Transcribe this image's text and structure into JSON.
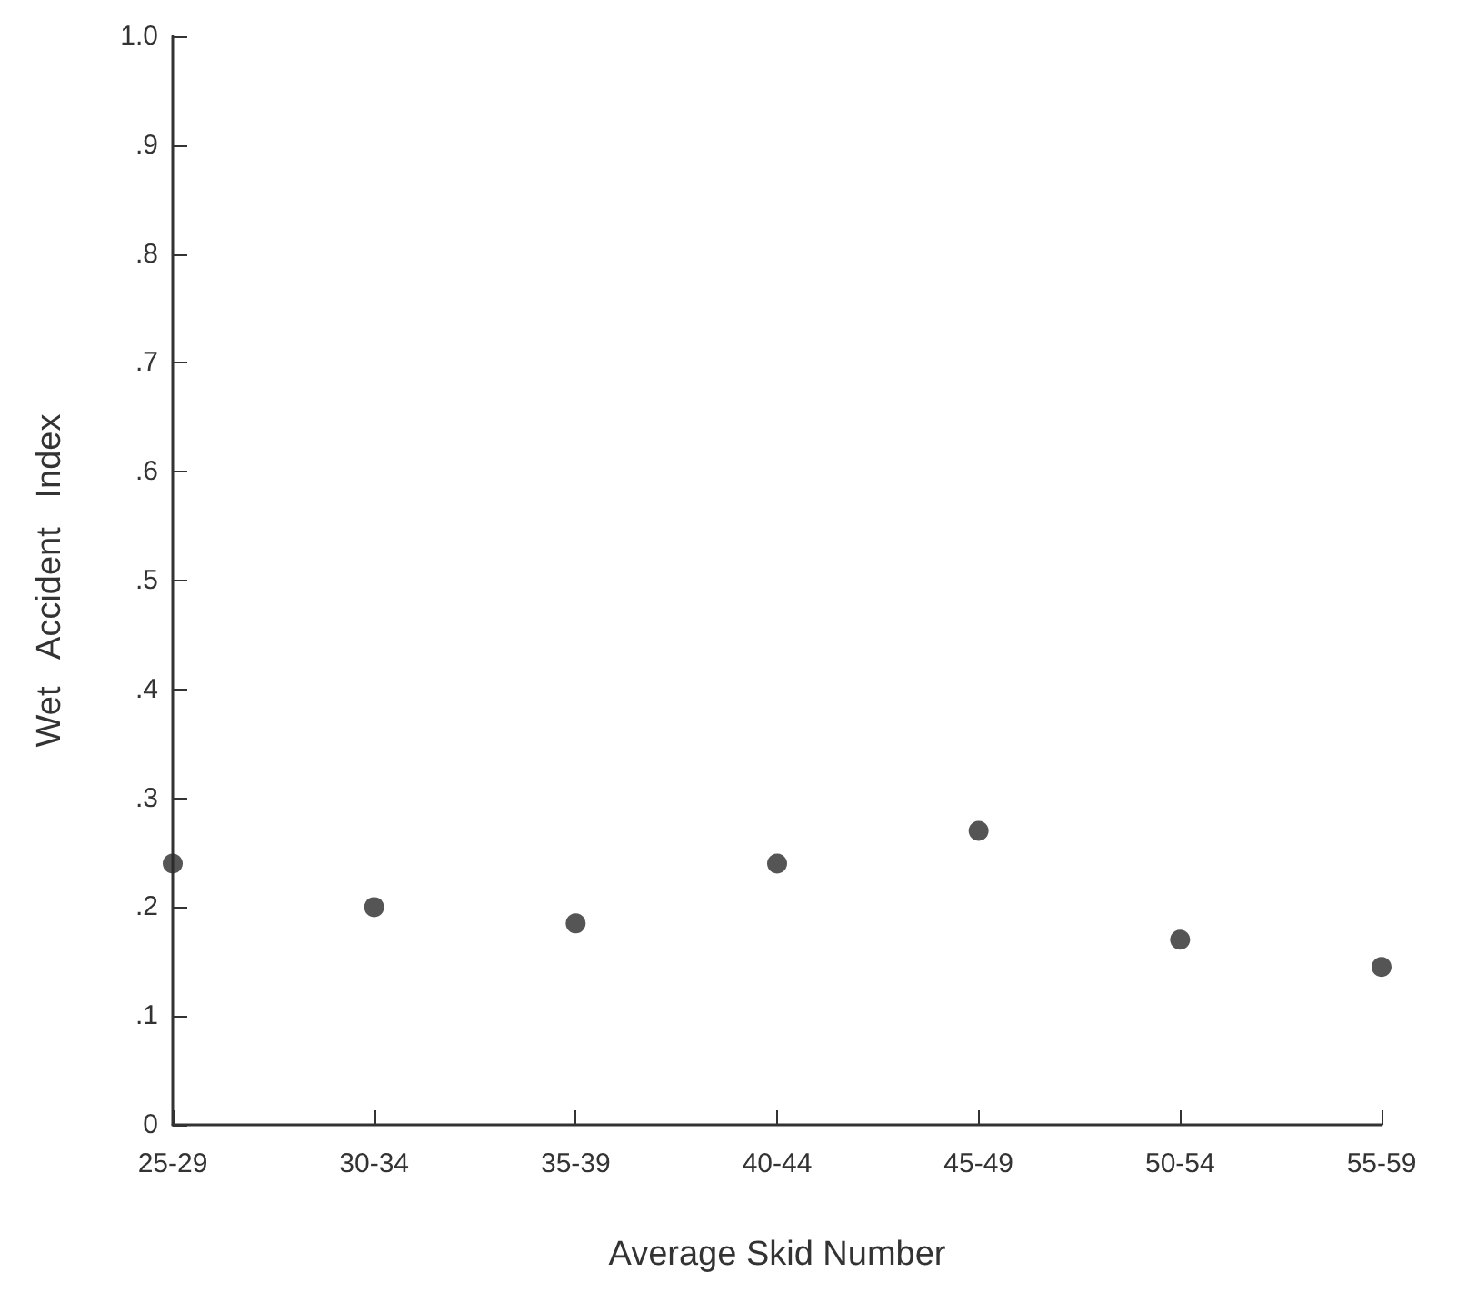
{
  "chart_data": {
    "type": "scatter",
    "xlabel": "Average Skid Number",
    "ylabel": "Wet   Accident   Index",
    "categories": [
      "25-29",
      "30-34",
      "35-39",
      "40-44",
      "45-49",
      "50-54",
      "55-59"
    ],
    "values": [
      0.24,
      0.2,
      0.185,
      0.24,
      0.27,
      0.17,
      0.145
    ],
    "color": "#2a2a2a",
    "marker": "circle",
    "grid": false,
    "ylim": [
      0,
      1
    ],
    "yticks": [
      {
        "value": 0,
        "label": "0"
      },
      {
        "value": 0.1,
        "label": ".1"
      },
      {
        "value": 0.2,
        "label": ".2"
      },
      {
        "value": 0.3,
        "label": ".3"
      },
      {
        "value": 0.4,
        "label": ".4"
      },
      {
        "value": 0.5,
        "label": ".5"
      },
      {
        "value": 0.6,
        "label": ".6"
      },
      {
        "value": 0.7,
        "label": ".7"
      },
      {
        "value": 0.8,
        "label": ".8"
      },
      {
        "value": 0.9,
        "label": ".9"
      },
      {
        "value": 1,
        "label": "1.0"
      }
    ]
  }
}
